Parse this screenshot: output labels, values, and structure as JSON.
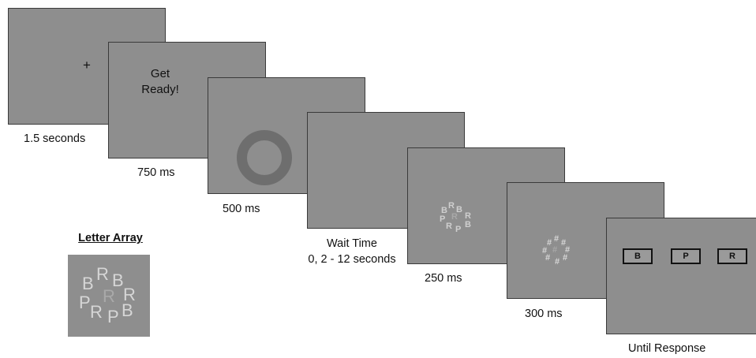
{
  "screens": [
    {
      "content": "+",
      "caption": "1.5 seconds"
    },
    {
      "content_lines": [
        "Get",
        "Ready!"
      ],
      "caption": "750 ms"
    },
    {
      "caption": "500 ms"
    },
    {
      "caption_lines": [
        "Wait Time",
        "0, 2 - 12 seconds"
      ]
    },
    {
      "letters": [
        "B",
        "R",
        "B",
        "P",
        "R",
        "R",
        "R",
        "P",
        "B"
      ],
      "caption": "250 ms"
    },
    {
      "mask_symbol": "#",
      "caption": "300 ms"
    },
    {
      "response_options": [
        "B",
        "P",
        "R"
      ],
      "caption": "Until Response"
    }
  ],
  "letter_array": {
    "title": "Letter Array",
    "letters": [
      "B",
      "R",
      "B",
      "P",
      "R",
      "R",
      "R",
      "P",
      "B"
    ]
  },
  "colors": {
    "screen_bg": "#8e8e8e",
    "target_letter": "#a9a9a9",
    "flanker_letter": "#d6d6d6",
    "ring": "#6e6e6e"
  }
}
